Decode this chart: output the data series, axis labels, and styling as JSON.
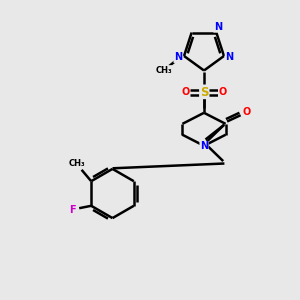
{
  "background_color": "#e8e8e8",
  "bond_color": "#000000",
  "atom_colors": {
    "N": "#0000ff",
    "O": "#ff0000",
    "F": "#cc00cc",
    "S": "#ccaa00",
    "C": "#000000"
  },
  "figsize": [
    3.0,
    3.0
  ],
  "dpi": 100
}
